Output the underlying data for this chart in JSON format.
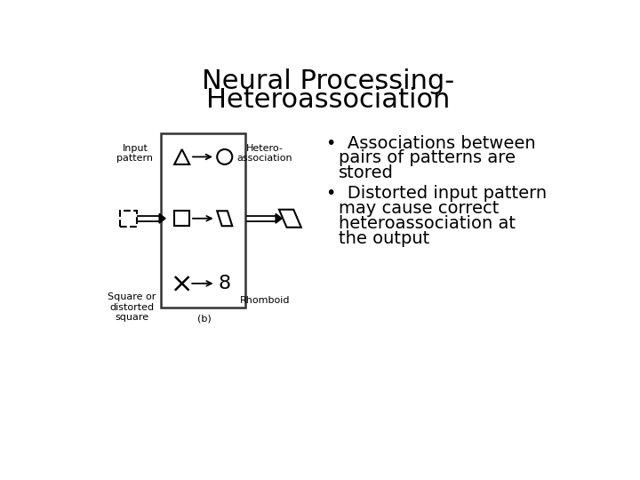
{
  "title_line1": "Neural Processing-",
  "title_line2": "Heteroassociation",
  "title_fontsize": 22,
  "bullet1_line1": "Associations between",
  "bullet1_line2": "pairs of patterns are",
  "bullet1_line3": "stored",
  "bullet2_line1": "Distorted input pattern",
  "bullet2_line2": "may cause correct",
  "bullet2_line3": "heteroassociation at",
  "bullet2_line4": "the output",
  "bullet_fontsize": 14,
  "background_color": "#ffffff",
  "text_color": "#000000",
  "label_input": "Input\npattern",
  "label_square": "Square or\ndistorted\nsquare",
  "label_hetero": "Hetero-\nassociation",
  "label_rhomboid": "Rhomboid",
  "label_b": "(b)"
}
